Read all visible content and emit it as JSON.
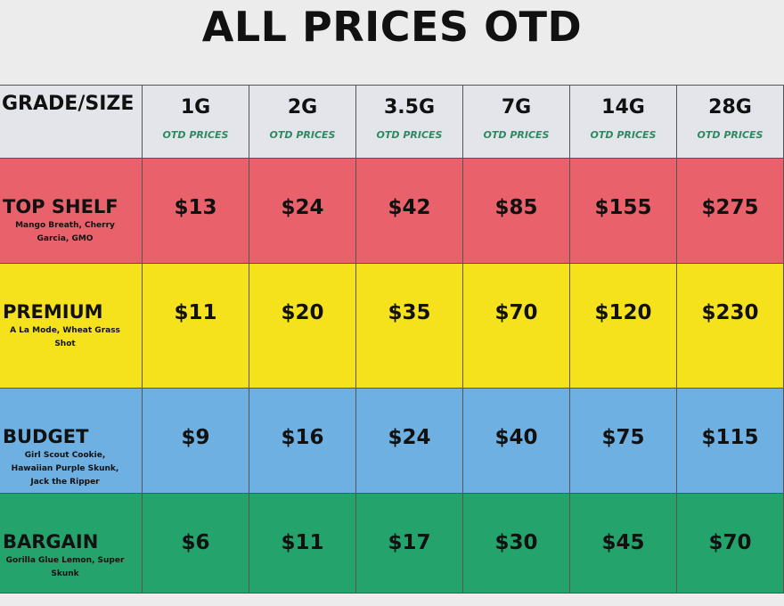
{
  "header": {
    "title": "ALL PRICES OTD"
  },
  "table": {
    "corner": "GRADE/SIZE",
    "columns": [
      {
        "size": "1G",
        "note": "OTD PRICES"
      },
      {
        "size": "2G",
        "note": "OTD PRICES"
      },
      {
        "size": "3.5G",
        "note": "OTD PRICES"
      },
      {
        "size": "7G",
        "note": "OTD PRICES"
      },
      {
        "size": "14G",
        "note": "OTD PRICES"
      },
      {
        "size": "28G",
        "note": "OTD PRICES"
      }
    ],
    "rows": [
      {
        "grade": "TOP SHELF",
        "strains": "Mango Breath, Cherry Garcia, GMO",
        "color": "#e9626b",
        "prices": [
          "$13",
          "$24",
          "$42",
          "$85",
          "$155",
          "$275"
        ]
      },
      {
        "grade": "PREMIUM",
        "strains": "A La Mode, Wheat Grass Shot",
        "color": "#f6e21c",
        "prices": [
          "$11",
          "$20",
          "$35",
          "$70",
          "$120",
          "$230"
        ]
      },
      {
        "grade": "BUDGET",
        "strains": "Girl Scout Cookie, Hawaiian Purple Skunk, Jack the Ripper",
        "color": "#6eb0e2",
        "prices": [
          "$9",
          "$16",
          "$24",
          "$40",
          "$75",
          "$115"
        ]
      },
      {
        "grade": "BARGAIN",
        "strains": "Gorilla Glue Lemon, Super Skunk",
        "color": "#25a36d",
        "prices": [
          "$6",
          "$11",
          "$17",
          "$30",
          "$45",
          "$70"
        ]
      }
    ]
  }
}
